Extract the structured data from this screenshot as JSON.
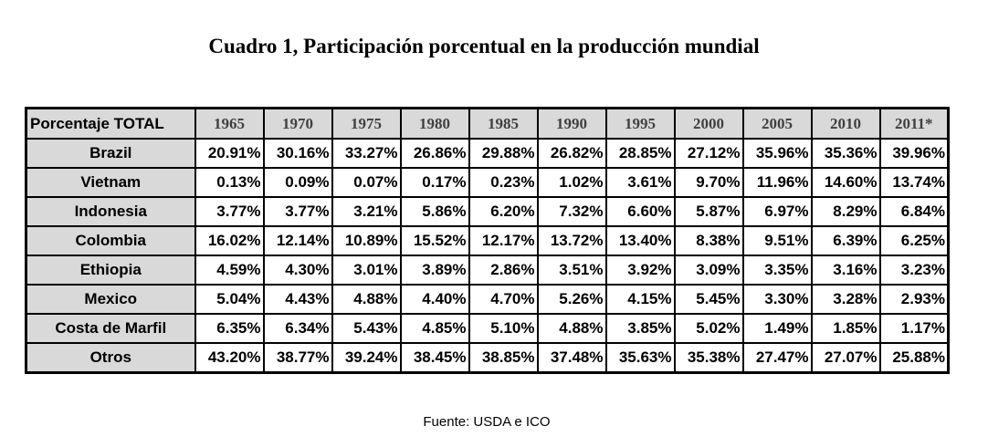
{
  "chart_data": {
    "type": "table",
    "title": "Cuadro 1, Participación porcentual en la producción mundial",
    "corner_label": "Porcentaje TOTAL",
    "columns": [
      "1965",
      "1970",
      "1975",
      "1980",
      "1985",
      "1990",
      "1995",
      "2000",
      "2005",
      "2010",
      "2011*"
    ],
    "rows": [
      {
        "label": "Brazil",
        "values": [
          "20.91%",
          "30.16%",
          "33.27%",
          "26.86%",
          "29.88%",
          "26.82%",
          "28.85%",
          "27.12%",
          "35.96%",
          "35.36%",
          "39.96%"
        ]
      },
      {
        "label": "Vietnam",
        "values": [
          "0.13%",
          "0.09%",
          "0.07%",
          "0.17%",
          "0.23%",
          "1.02%",
          "3.61%",
          "9.70%",
          "11.96%",
          "14.60%",
          "13.74%"
        ]
      },
      {
        "label": "Indonesia",
        "values": [
          "3.77%",
          "3.77%",
          "3.21%",
          "5.86%",
          "6.20%",
          "7.32%",
          "6.60%",
          "5.87%",
          "6.97%",
          "8.29%",
          "6.84%"
        ]
      },
      {
        "label": "Colombia",
        "values": [
          "16.02%",
          "12.14%",
          "10.89%",
          "15.52%",
          "12.17%",
          "13.72%",
          "13.40%",
          "8.38%",
          "9.51%",
          "6.39%",
          "6.25%"
        ]
      },
      {
        "label": "Ethiopia",
        "values": [
          "4.59%",
          "4.30%",
          "3.01%",
          "3.89%",
          "2.86%",
          "3.51%",
          "3.92%",
          "3.09%",
          "3.35%",
          "3.16%",
          "3.23%"
        ]
      },
      {
        "label": "Mexico",
        "values": [
          "5.04%",
          "4.43%",
          "4.88%",
          "4.40%",
          "4.70%",
          "5.26%",
          "4.15%",
          "5.45%",
          "3.30%",
          "3.28%",
          "2.93%"
        ]
      },
      {
        "label": "Costa de Marfil",
        "values": [
          "6.35%",
          "6.34%",
          "5.43%",
          "4.85%",
          "5.10%",
          "4.88%",
          "3.85%",
          "5.02%",
          "1.49%",
          "1.85%",
          "1.17%"
        ]
      },
      {
        "label": "Otros",
        "values": [
          "43.20%",
          "38.77%",
          "39.24%",
          "38.45%",
          "38.85%",
          "37.48%",
          "35.63%",
          "35.38%",
          "27.47%",
          "27.07%",
          "25.88%"
        ]
      }
    ],
    "source": "Fuente: USDA e ICO"
  },
  "colors": {
    "header_background": "#d9d9d9",
    "header_year_text": "#404040",
    "border": "#000000",
    "cell_background": "#ffffff"
  }
}
